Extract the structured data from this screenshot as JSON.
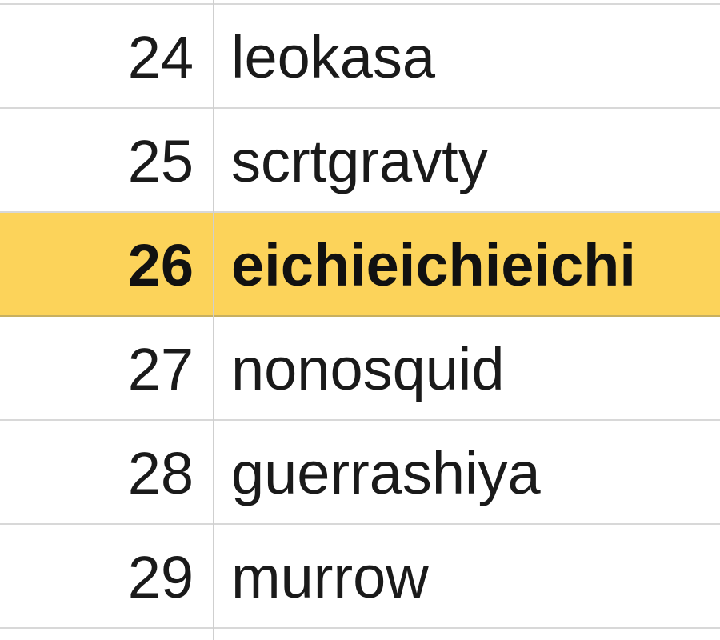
{
  "rows": [
    {
      "number": "24",
      "name": "leokasa"
    },
    {
      "number": "25",
      "name": "scrtgravty"
    },
    {
      "number": "26",
      "name": "eichieichieichi",
      "highlighted": true
    },
    {
      "number": "27",
      "name": "nonosquid"
    },
    {
      "number": "28",
      "name": "guerrashiya"
    },
    {
      "number": "29",
      "name": "murrow"
    }
  ],
  "highlight_color": "#fcd35a"
}
